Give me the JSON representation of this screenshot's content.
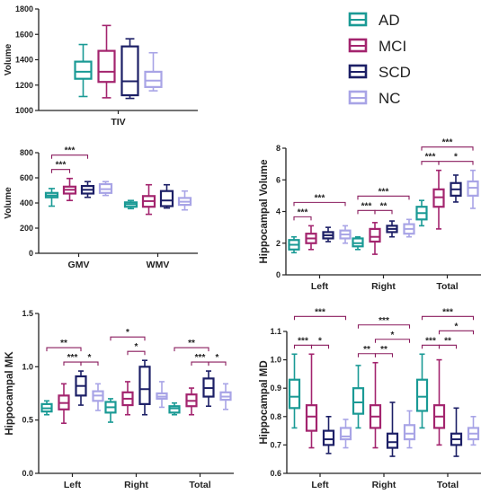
{
  "legend": [
    {
      "label": "AD",
      "color": "#1a9a95"
    },
    {
      "label": "MCI",
      "color": "#a3246e"
    },
    {
      "label": "SCD",
      "color": "#1c1f66"
    },
    {
      "label": "NC",
      "color": "#a8a4e6"
    }
  ],
  "chart_data": [
    {
      "id": "tiv",
      "type": "box",
      "ylabel": "Volume",
      "ylim": [
        1000,
        1800
      ],
      "yticks": [
        1000,
        1200,
        1400,
        1600,
        1800
      ],
      "categories": [
        "TIV"
      ],
      "groups": [
        [
          {
            "min": 1110,
            "q1": 1250,
            "median": 1305,
            "q3": 1385,
            "max": 1520
          },
          {
            "min": 1100,
            "q1": 1225,
            "median": 1305,
            "q3": 1470,
            "max": 1670
          },
          {
            "min": 1095,
            "q1": 1120,
            "median": 1230,
            "q3": 1505,
            "max": 1565
          },
          {
            "min": 1155,
            "q1": 1185,
            "median": 1235,
            "q3": 1305,
            "max": 1455
          }
        ]
      ],
      "sig": []
    },
    {
      "id": "gm-wm",
      "type": "box",
      "ylabel": "Volume",
      "ylim": [
        0,
        800
      ],
      "yticks": [
        0,
        200,
        400,
        600,
        800
      ],
      "categories": [
        "GMV",
        "WMV"
      ],
      "groups": [
        [
          {
            "min": 375,
            "q1": 445,
            "median": 460,
            "q3": 480,
            "max": 515
          },
          {
            "min": 420,
            "q1": 475,
            "median": 505,
            "q3": 530,
            "max": 595
          },
          {
            "min": 445,
            "q1": 475,
            "median": 505,
            "q3": 535,
            "max": 570
          },
          {
            "min": 460,
            "q1": 480,
            "median": 510,
            "q3": 550,
            "max": 570
          }
        ],
        [
          {
            "min": 355,
            "q1": 370,
            "median": 390,
            "q3": 405,
            "max": 420
          },
          {
            "min": 310,
            "q1": 370,
            "median": 415,
            "q3": 455,
            "max": 545
          },
          {
            "min": 360,
            "q1": 375,
            "median": 420,
            "q3": 495,
            "max": 545
          },
          {
            "min": 345,
            "q1": 385,
            "median": 410,
            "q3": 440,
            "max": 495
          }
        ]
      ],
      "sig": [
        {
          "cat": 0,
          "from": 0,
          "to": 1,
          "label": "***",
          "level": 0
        },
        {
          "cat": 0,
          "from": 0,
          "to": 2,
          "label": "***",
          "level": 1
        }
      ]
    },
    {
      "id": "hippo-volume",
      "type": "box",
      "ylabel": "Hippocampal Volume",
      "ylim": [
        0,
        8
      ],
      "yticks": [
        0,
        2,
        4,
        6,
        8
      ],
      "categories": [
        "Left",
        "Right",
        "Total"
      ],
      "groups": [
        [
          {
            "min": 1.4,
            "q1": 1.6,
            "median": 1.9,
            "q3": 2.2,
            "max": 2.4
          },
          {
            "min": 1.6,
            "q1": 2.0,
            "median": 2.3,
            "q3": 2.6,
            "max": 3.1
          },
          {
            "min": 2.1,
            "q1": 2.3,
            "median": 2.5,
            "q3": 2.7,
            "max": 3.0
          },
          {
            "min": 2.0,
            "q1": 2.3,
            "median": 2.55,
            "q3": 2.8,
            "max": 3.1
          }
        ],
        [
          {
            "min": 1.6,
            "q1": 1.8,
            "median": 2.0,
            "q3": 2.3,
            "max": 2.4
          },
          {
            "min": 1.3,
            "q1": 2.1,
            "median": 2.4,
            "q3": 2.9,
            "max": 3.3
          },
          {
            "min": 2.4,
            "q1": 2.7,
            "median": 2.9,
            "q3": 3.1,
            "max": 3.4
          },
          {
            "min": 2.4,
            "q1": 2.6,
            "median": 2.9,
            "q3": 3.2,
            "max": 3.5
          }
        ],
        [
          {
            "min": 3.1,
            "q1": 3.5,
            "median": 3.9,
            "q3": 4.3,
            "max": 4.7
          },
          {
            "min": 2.9,
            "q1": 4.3,
            "median": 4.9,
            "q3": 5.4,
            "max": 6.6
          },
          {
            "min": 4.6,
            "q1": 5.0,
            "median": 5.4,
            "q3": 5.8,
            "max": 6.3
          },
          {
            "min": 4.2,
            "q1": 5.0,
            "median": 5.5,
            "q3": 5.9,
            "max": 6.6
          }
        ]
      ],
      "sig": [
        {
          "cat": 0,
          "from": 0,
          "to": 1,
          "label": "***",
          "level": 0
        },
        {
          "cat": 0,
          "from": 0,
          "to": 3,
          "label": "***",
          "level": 1
        },
        {
          "cat": 1,
          "from": 0,
          "to": 1,
          "label": "***",
          "level": 0
        },
        {
          "cat": 1,
          "from": 1,
          "to": 2,
          "label": "**",
          "level": 0
        },
        {
          "cat": 1,
          "from": 0,
          "to": 3,
          "label": "***",
          "level": 1
        },
        {
          "cat": 2,
          "from": 0,
          "to": 1,
          "label": "***",
          "level": 0
        },
        {
          "cat": 2,
          "from": 1,
          "to": 3,
          "label": "*",
          "level": 0
        },
        {
          "cat": 2,
          "from": 0,
          "to": 3,
          "label": "***",
          "level": 1
        }
      ]
    },
    {
      "id": "hippo-mk",
      "type": "box",
      "ylabel": "Hippocampal MK",
      "ylim": [
        0.0,
        1.5
      ],
      "yticks": [
        0.0,
        0.5,
        1.0,
        1.5
      ],
      "ytick_format": 1,
      "categories": [
        "Left",
        "Right",
        "Total"
      ],
      "groups": [
        [
          {
            "min": 0.55,
            "q1": 0.58,
            "median": 0.61,
            "q3": 0.65,
            "max": 0.68
          },
          {
            "min": 0.47,
            "q1": 0.6,
            "median": 0.66,
            "q3": 0.73,
            "max": 0.84
          },
          {
            "min": 0.64,
            "q1": 0.73,
            "median": 0.82,
            "q3": 0.91,
            "max": 0.96
          },
          {
            "min": 0.59,
            "q1": 0.68,
            "median": 0.73,
            "q3": 0.77,
            "max": 0.84
          }
        ],
        [
          {
            "min": 0.48,
            "q1": 0.57,
            "median": 0.62,
            "q3": 0.67,
            "max": 0.7
          },
          {
            "min": 0.55,
            "q1": 0.64,
            "median": 0.7,
            "q3": 0.76,
            "max": 0.86
          },
          {
            "min": 0.55,
            "q1": 0.65,
            "median": 0.79,
            "q3": 1.0,
            "max": 1.06
          },
          {
            "min": 0.62,
            "q1": 0.7,
            "median": 0.72,
            "q3": 0.75,
            "max": 0.86
          }
        ],
        [
          {
            "min": 0.55,
            "q1": 0.57,
            "median": 0.61,
            "q3": 0.63,
            "max": 0.66
          },
          {
            "min": 0.55,
            "q1": 0.63,
            "median": 0.68,
            "q3": 0.74,
            "max": 0.8
          },
          {
            "min": 0.63,
            "q1": 0.72,
            "median": 0.8,
            "q3": 0.89,
            "max": 0.96
          },
          {
            "min": 0.6,
            "q1": 0.69,
            "median": 0.72,
            "q3": 0.76,
            "max": 0.84
          }
        ]
      ],
      "sig": [
        {
          "cat": 0,
          "from": 1,
          "to": 2,
          "label": "***",
          "level": 0
        },
        {
          "cat": 0,
          "from": 2,
          "to": 3,
          "label": "*",
          "level": 0
        },
        {
          "cat": 0,
          "from": 0,
          "to": 2,
          "label": "**",
          "level": 1
        },
        {
          "cat": 1,
          "from": 1,
          "to": 2,
          "label": "*",
          "level": 0
        },
        {
          "cat": 1,
          "from": 0,
          "to": 2,
          "label": "*",
          "level": 1
        },
        {
          "cat": 2,
          "from": 1,
          "to": 2,
          "label": "***",
          "level": 0
        },
        {
          "cat": 2,
          "from": 2,
          "to": 3,
          "label": "*",
          "level": 0
        },
        {
          "cat": 2,
          "from": 0,
          "to": 2,
          "label": "**",
          "level": 1
        }
      ]
    },
    {
      "id": "hippo-md",
      "type": "box",
      "ylabel": "Hippocampal MD",
      "ylim": [
        0.6,
        1.1
      ],
      "yticks": [
        0.6,
        0.7,
        0.8,
        0.9,
        1.0,
        1.1
      ],
      "ytick_format": 1,
      "categories": [
        "Left",
        "Right",
        "Total"
      ],
      "groups": [
        [
          {
            "min": 0.76,
            "q1": 0.83,
            "median": 0.87,
            "q3": 0.93,
            "max": 1.02
          },
          {
            "min": 0.69,
            "q1": 0.75,
            "median": 0.8,
            "q3": 0.84,
            "max": 1.02
          },
          {
            "min": 0.67,
            "q1": 0.7,
            "median": 0.72,
            "q3": 0.75,
            "max": 0.8
          },
          {
            "min": 0.69,
            "q1": 0.72,
            "median": 0.73,
            "q3": 0.76,
            "max": 0.79
          }
        ],
        [
          {
            "min": 0.76,
            "q1": 0.81,
            "median": 0.85,
            "q3": 0.9,
            "max": 0.98
          },
          {
            "min": 0.69,
            "q1": 0.76,
            "median": 0.8,
            "q3": 0.84,
            "max": 0.99
          },
          {
            "min": 0.66,
            "q1": 0.69,
            "median": 0.71,
            "q3": 0.74,
            "max": 0.85
          },
          {
            "min": 0.69,
            "q1": 0.72,
            "median": 0.74,
            "q3": 0.77,
            "max": 0.82
          }
        ],
        [
          {
            "min": 0.76,
            "q1": 0.82,
            "median": 0.87,
            "q3": 0.93,
            "max": 1.02
          },
          {
            "min": 0.7,
            "q1": 0.76,
            "median": 0.8,
            "q3": 0.84,
            "max": 1.0
          },
          {
            "min": 0.66,
            "q1": 0.7,
            "median": 0.72,
            "q3": 0.74,
            "max": 0.83
          },
          {
            "min": 0.7,
            "q1": 0.72,
            "median": 0.74,
            "q3": 0.76,
            "max": 0.8
          }
        ]
      ],
      "sig": [
        {
          "cat": 0,
          "from": 0,
          "to": 1,
          "label": "***",
          "level": 0
        },
        {
          "cat": 0,
          "from": 1,
          "to": 2,
          "label": "*",
          "level": 0
        },
        {
          "cat": 0,
          "from": 0,
          "to": 3,
          "label": "***",
          "level": 2
        },
        {
          "cat": 1,
          "from": 0,
          "to": 1,
          "label": "**",
          "level": 0
        },
        {
          "cat": 1,
          "from": 1,
          "to": 2,
          "label": "**",
          "level": 0
        },
        {
          "cat": 1,
          "from": 1,
          "to": 3,
          "label": "*",
          "level": 1
        },
        {
          "cat": 1,
          "from": 0,
          "to": 3,
          "label": "***",
          "level": 2
        },
        {
          "cat": 2,
          "from": 0,
          "to": 1,
          "label": "***",
          "level": 0
        },
        {
          "cat": 2,
          "from": 1,
          "to": 2,
          "label": "**",
          "level": 0
        },
        {
          "cat": 2,
          "from": 1,
          "to": 3,
          "label": "*",
          "level": 1
        },
        {
          "cat": 2,
          "from": 0,
          "to": 3,
          "label": "***",
          "level": 2
        }
      ]
    }
  ]
}
